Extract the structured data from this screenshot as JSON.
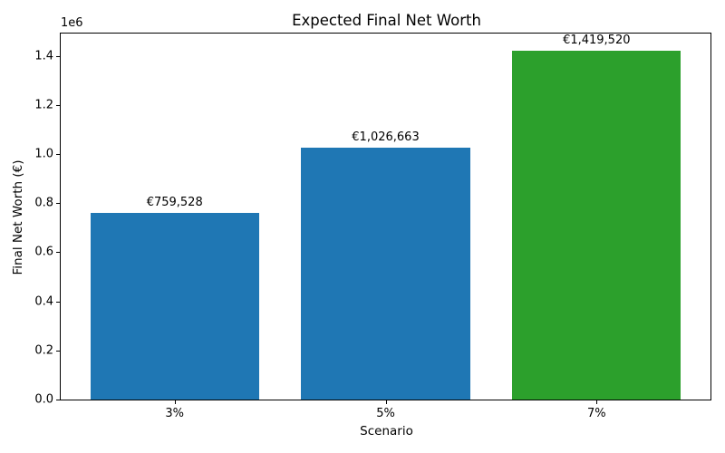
{
  "chart_data": {
    "type": "bar",
    "title": "Expected Final Net Worth",
    "xlabel": "Scenario",
    "ylabel": "Final Net Worth (€)",
    "categories": [
      "3%",
      "5%",
      "7%"
    ],
    "values": [
      759528,
      1026663,
      1419520
    ],
    "bar_labels": [
      "€759,528",
      "€1,026,663",
      "€1,419,520"
    ],
    "bar_colors": [
      "#1f77b4",
      "#1f77b4",
      "#2ca02c"
    ],
    "ylim": [
      0,
      1490496
    ],
    "yticks": [
      0,
      200000,
      400000,
      600000,
      800000,
      1000000,
      1200000,
      1400000
    ],
    "ytick_labels": [
      "0.0",
      "0.2",
      "0.4",
      "0.6",
      "0.8",
      "1.0",
      "1.2",
      "1.4"
    ],
    "y_offset_label": "1e6",
    "grid": false,
    "legend": "none",
    "background_color": "#ffffff",
    "axis_color": "#000000"
  }
}
